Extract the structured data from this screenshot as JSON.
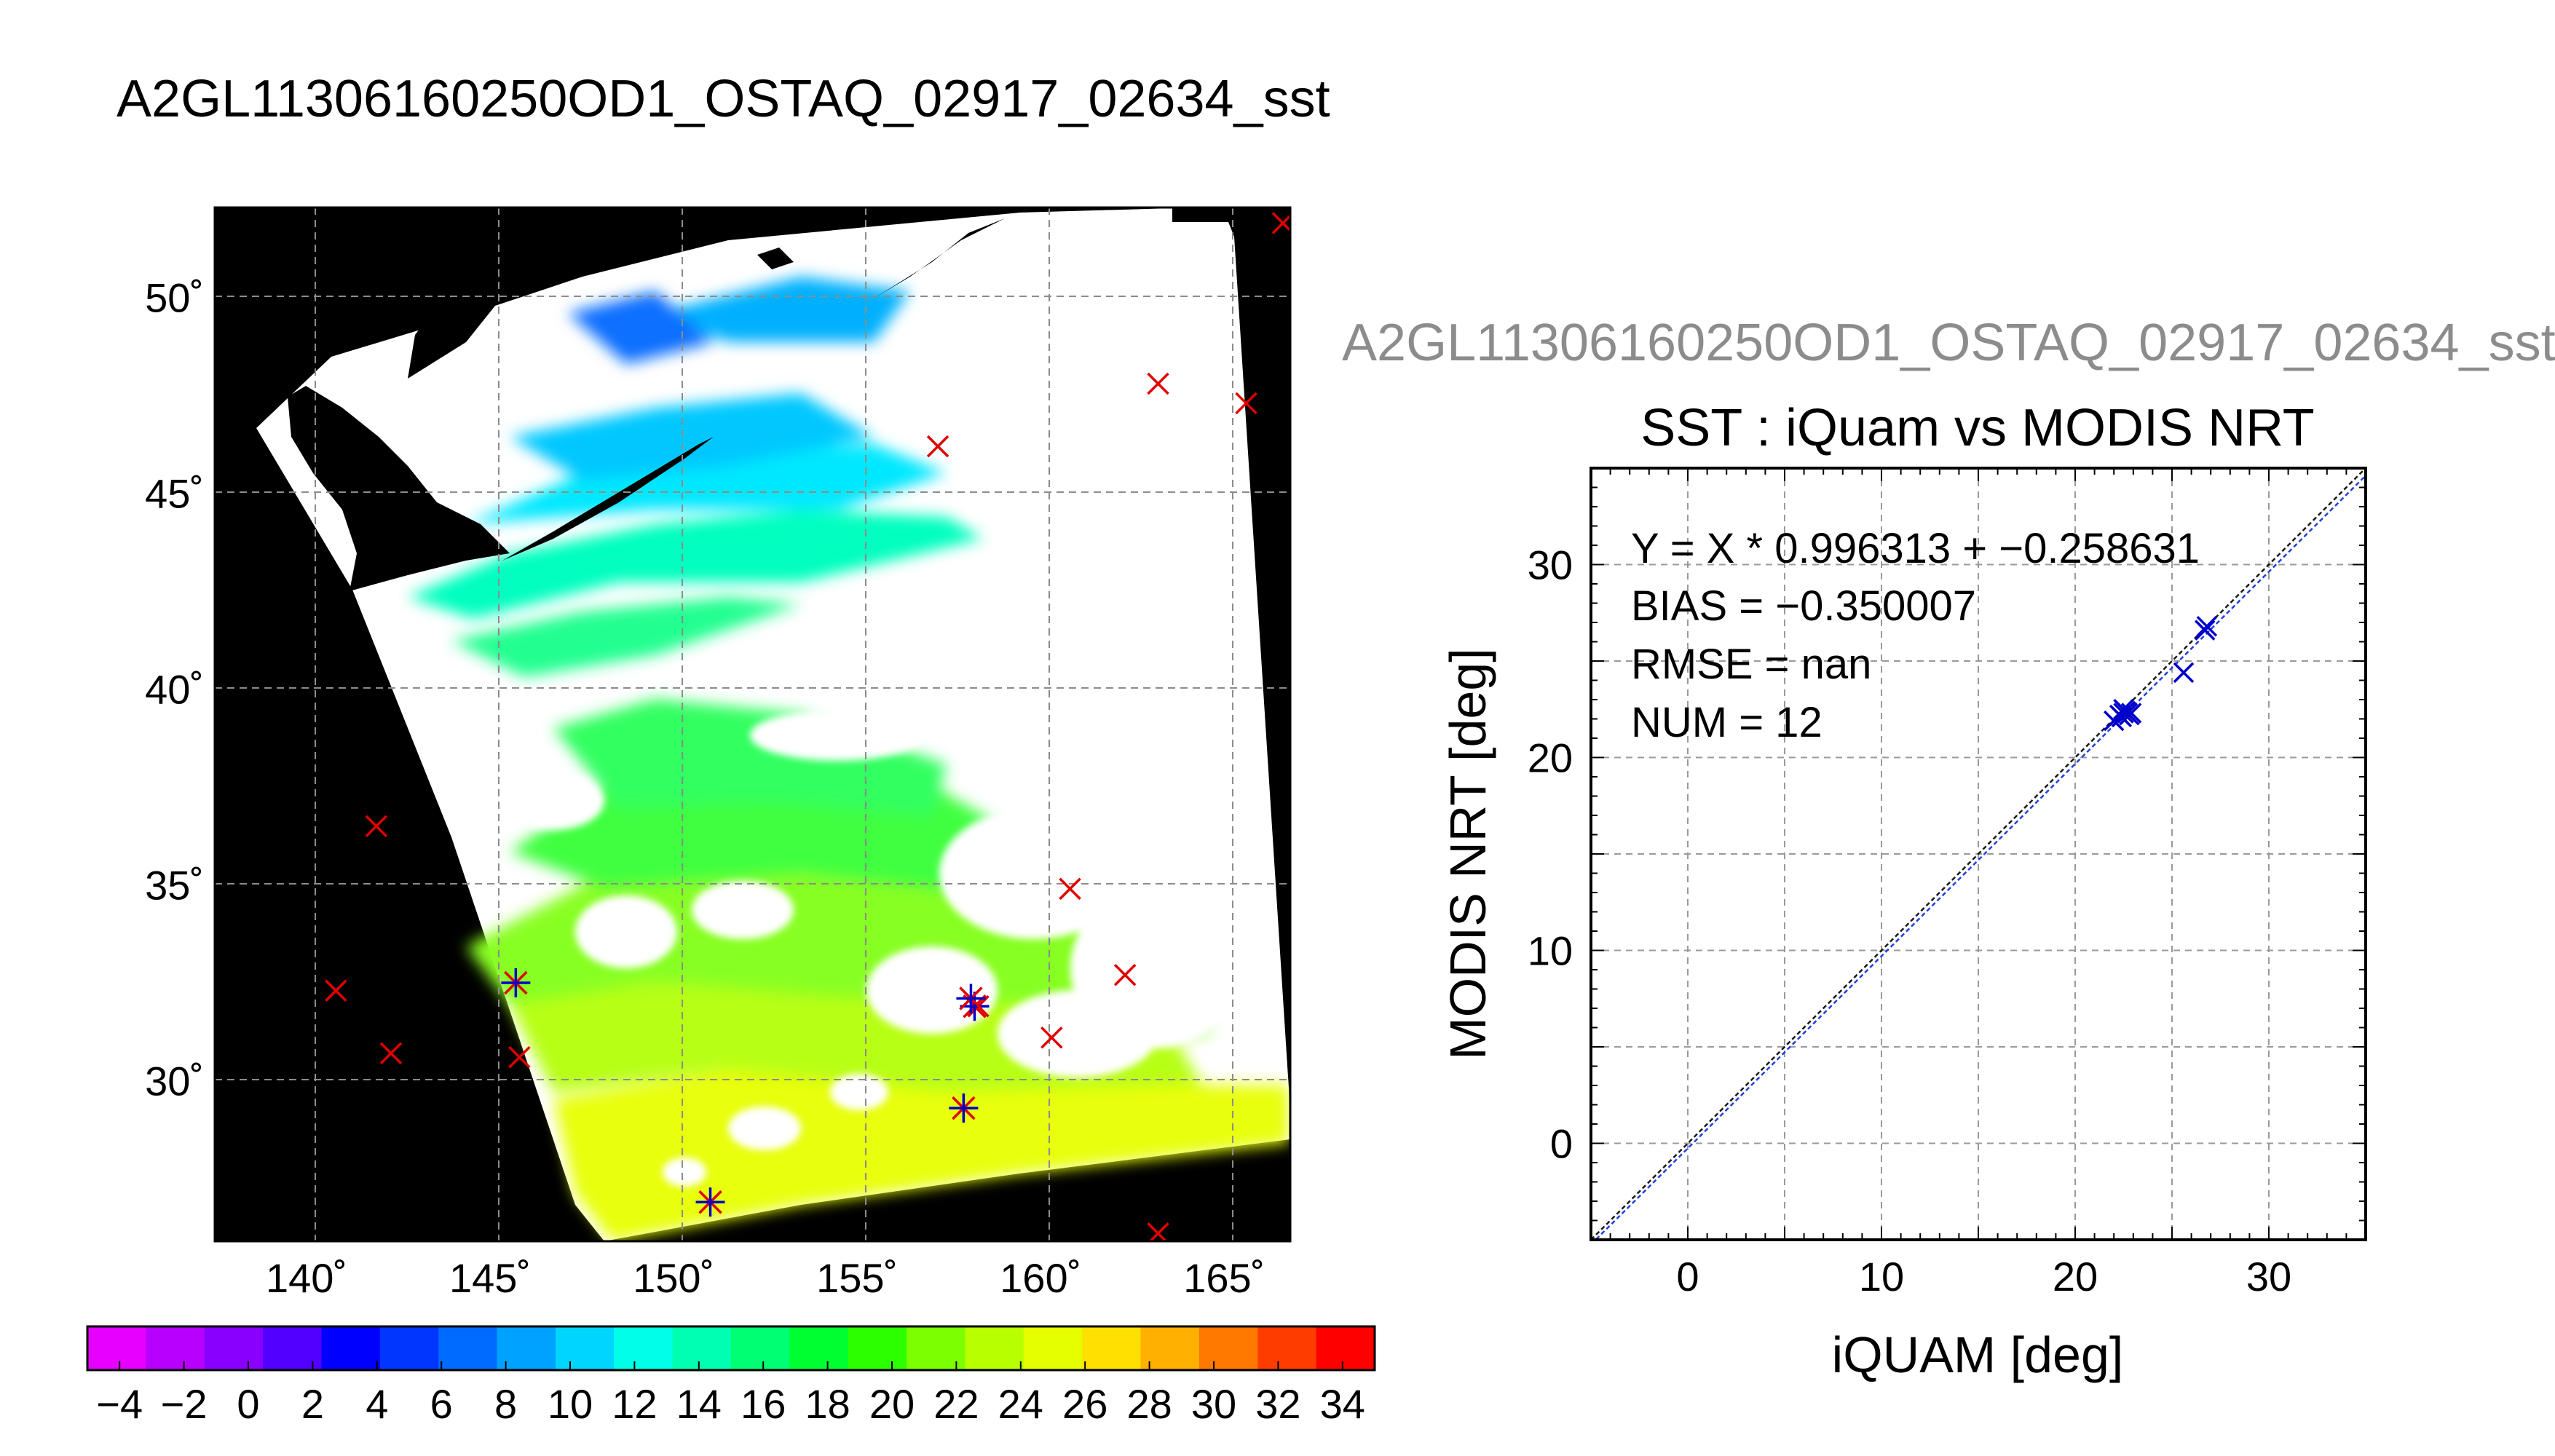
{
  "page_title": "A2GL11306160250OD1_OSTAQ_02917_02634_sst",
  "scatter_heading": "A2GL11306160250OD1_OSTAQ_02917_02634_sst",
  "colors": {
    "match_marker": "#0000cc",
    "buoy_marker": "#e00000",
    "land": "#000000",
    "grid": "#8c8c8c"
  },
  "chart_data": [
    {
      "type": "heatmap",
      "title": "",
      "xlabel": "",
      "ylabel": "",
      "xlim": [
        137.5,
        166.8
      ],
      "ylim": [
        25.9,
        52.3
      ],
      "grid": true,
      "x_ticks": [
        140,
        145,
        150,
        155,
        160,
        165
      ],
      "x_tick_labels": [
        "140˚",
        "145˚",
        "150˚",
        "155˚",
        "160˚",
        "165˚"
      ],
      "y_ticks": [
        30,
        35,
        40,
        45,
        50
      ],
      "y_tick_labels": [
        "30˚",
        "35˚",
        "40˚",
        "45˚",
        "50˚"
      ],
      "colorbar": {
        "range": [
          -5,
          35
        ],
        "tick_values": [
          -4,
          -2,
          0,
          2,
          4,
          6,
          8,
          10,
          12,
          14,
          16,
          18,
          20,
          22,
          24,
          26,
          28,
          30,
          32,
          34
        ],
        "tick_labels": [
          "−4",
          "−2",
          "0",
          "2",
          "4",
          "6",
          "8",
          "10",
          "12",
          "14",
          "16",
          "18",
          "20",
          "22",
          "24",
          "26",
          "28",
          "30",
          "32",
          "34"
        ],
        "colors": [
          "#e600ff",
          "#b800ff",
          "#8a00ff",
          "#5200ff",
          "#0000ff",
          "#0036ff",
          "#006cff",
          "#00a2ff",
          "#00d5ff",
          "#00ffe6",
          "#00ffb0",
          "#00ff72",
          "#00ff30",
          "#2cff00",
          "#7cff00",
          "#b8ff00",
          "#e6ff00",
          "#ffe000",
          "#ffb000",
          "#ff7800",
          "#ff3c00",
          "#ff0000"
        ]
      },
      "matchups": [
        [
          151,
          26.9
        ],
        [
          157.9,
          29.3
        ],
        [
          158.2,
          31.9
        ],
        [
          158.1,
          32.1
        ],
        [
          145.7,
          32.5
        ]
      ],
      "buoys": [
        [
          140.8,
          32.3
        ],
        [
          142.3,
          30.7
        ],
        [
          145.8,
          30.6
        ],
        [
          141.9,
          36.5
        ],
        [
          160.3,
          31.1
        ],
        [
          160.8,
          34.9
        ],
        [
          162.3,
          32.7
        ],
        [
          158.3,
          31.9
        ],
        [
          157.2,
          46.2
        ],
        [
          163.2,
          47.8
        ],
        [
          165.6,
          47.3
        ],
        [
          166.6,
          51.9
        ],
        [
          163.2,
          26.1
        ]
      ]
    },
    {
      "type": "scatter",
      "title": "SST : iQuam vs MODIS NRT",
      "xlabel": "iQUAM [deg]",
      "ylabel": "MODIS NRT [deg]",
      "xlim": [
        -5,
        35
      ],
      "ylim": [
        -5,
        35
      ],
      "x_ticks": [
        0,
        10,
        20,
        30
      ],
      "y_ticks": [
        0,
        10,
        20,
        30
      ],
      "grid": true,
      "annotations": [
        "Y = X * 0.996313 + −0.258631",
        "BIAS = −0.350007",
        "RMSE = nan",
        "NUM = 12"
      ],
      "points": [
        [
          22.0,
          21.9
        ],
        [
          22.3,
          22.2
        ],
        [
          22.5,
          22.3
        ],
        [
          22.6,
          22.4
        ],
        [
          22.7,
          22.3
        ],
        [
          22.9,
          22.3
        ],
        [
          25.6,
          24.4
        ],
        [
          26.8,
          26.8
        ],
        [
          26.7,
          26.6
        ],
        [
          22.4,
          22.1
        ],
        [
          22.8,
          22.2
        ],
        [
          22.5,
          22.5
        ]
      ],
      "fit_lines": [
        {
          "slope": 1.0,
          "intercept": 0.0
        },
        {
          "slope": 0.996313,
          "intercept": -0.258631
        }
      ]
    }
  ]
}
